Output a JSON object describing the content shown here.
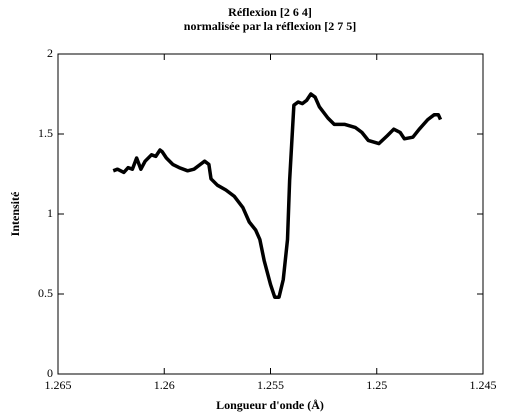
{
  "chart_data": {
    "type": "line",
    "title": "Réflexion [2 6 4]",
    "subtitle": "normalisée par la réflexion [2 7 5]",
    "xlabel": "Longueur d'onde (Å)",
    "ylabel": "Intensité",
    "xlim": [
      1.265,
      1.245
    ],
    "xticks": [
      1.265,
      1.26,
      1.255,
      1.25,
      1.245
    ],
    "ylim": [
      0,
      2
    ],
    "yticks": [
      0,
      0.5,
      1,
      1.5,
      2
    ],
    "x": [
      1.2624,
      1.2622,
      1.2619,
      1.2617,
      1.2615,
      1.2613,
      1.2611,
      1.2609,
      1.2606,
      1.2604,
      1.2602,
      1.2601,
      1.2599,
      1.2596,
      1.2593,
      1.2589,
      1.2586,
      1.2583,
      1.2581,
      1.2579,
      1.2578,
      1.2575,
      1.2571,
      1.2567,
      1.2563,
      1.256,
      1.2557,
      1.2555,
      1.2553,
      1.255,
      1.2548,
      1.2546,
      1.2544,
      1.2542,
      1.2541,
      1.2539,
      1.2537,
      1.2535,
      1.2533,
      1.2531,
      1.2529,
      1.2527,
      1.2523,
      1.252,
      1.2515,
      1.251,
      1.2507,
      1.2504,
      1.2499,
      1.2495,
      1.2492,
      1.2489,
      1.2487,
      1.2483,
      1.248,
      1.2476,
      1.2473,
      1.2471,
      1.247
    ],
    "series": [
      {
        "color": "#000000",
        "values": [
          1.27,
          1.28,
          1.26,
          1.29,
          1.28,
          1.35,
          1.28,
          1.33,
          1.37,
          1.36,
          1.4,
          1.39,
          1.35,
          1.31,
          1.29,
          1.27,
          1.28,
          1.31,
          1.33,
          1.31,
          1.22,
          1.18,
          1.15,
          1.11,
          1.04,
          0.95,
          0.9,
          0.84,
          0.71,
          0.56,
          0.48,
          0.48,
          0.59,
          0.84,
          1.21,
          1.68,
          1.7,
          1.69,
          1.71,
          1.75,
          1.73,
          1.67,
          1.6,
          1.56,
          1.56,
          1.54,
          1.51,
          1.46,
          1.44,
          1.49,
          1.53,
          1.51,
          1.47,
          1.48,
          1.53,
          1.59,
          1.62,
          1.62,
          1.59
        ]
      }
    ]
  }
}
